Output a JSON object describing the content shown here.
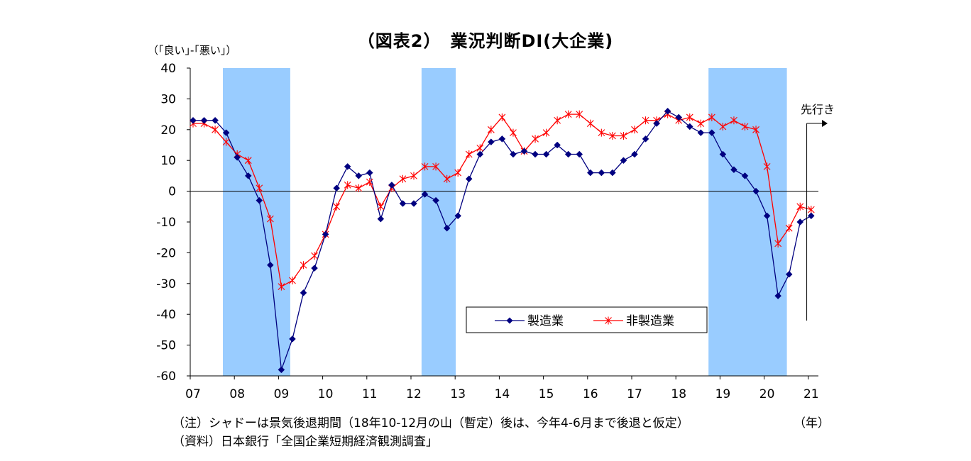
{
  "title": "（図表2）　業況判断DI(大企業)",
  "ylabel": "（｢良い｣-｢悪い｣）",
  "xunit": "（年）",
  "note1": "（注）シャドーは景気後退期間（18年10-12月の山（暫定）後は、今年4-6月まで後退と仮定）",
  "note2": "（資料）日本銀行「全国企業短期経済観測調査」",
  "annotation": "先行き",
  "colors": {
    "manufacturing": "#000080",
    "non_manufacturing": "#ff0000",
    "shade": "#99ccff"
  },
  "chart_data": {
    "type": "line",
    "title": "（図表2）　業況判断DI(大企業)",
    "ylabel": "（｢良い｣-｢悪い｣）",
    "xlabel": "（年）",
    "ylim": [
      -60,
      40
    ],
    "yticks": [
      40,
      30,
      20,
      10,
      0,
      -10,
      -20,
      -30,
      -40,
      -50,
      -60
    ],
    "xticks": [
      "07",
      "08",
      "09",
      "10",
      "11",
      "12",
      "13",
      "14",
      "15",
      "16",
      "17",
      "18",
      "19",
      "20",
      "21"
    ],
    "x_start": "2007Q1",
    "x_step": "quarter",
    "legend": [
      "製造業",
      "非製造業"
    ],
    "legend_position": "lower-right",
    "shaded_recessions": [
      [
        "2007Q4",
        "2009Q1"
      ],
      [
        "2012Q2",
        "2012Q4"
      ],
      [
        "2018Q4",
        "2020Q2"
      ]
    ],
    "series": [
      {
        "name": "製造業",
        "marker": "diamond",
        "values": [
          23,
          23,
          23,
          19,
          11,
          5,
          -3,
          -24,
          -58,
          -48,
          -33,
          -25,
          -14,
          1,
          8,
          5,
          6,
          -9,
          2,
          -4,
          -4,
          -1,
          -3,
          -12,
          -8,
          4,
          12,
          16,
          17,
          12,
          13,
          12,
          12,
          15,
          12,
          12,
          6,
          6,
          6,
          10,
          12,
          17,
          22,
          26,
          24,
          21,
          19,
          19,
          12,
          7,
          5,
          0,
          -8,
          -34,
          -27,
          -10,
          -8
        ]
      },
      {
        "name": "非製造業",
        "marker": "star",
        "values": [
          22,
          22,
          20,
          16,
          12,
          10,
          1,
          -9,
          -31,
          -29,
          -24,
          -21,
          -14,
          -5,
          2,
          1,
          3,
          -5,
          1,
          4,
          5,
          8,
          8,
          4,
          6,
          12,
          14,
          20,
          24,
          19,
          13,
          17,
          19,
          23,
          25,
          25,
          22,
          19,
          18,
          18,
          20,
          23,
          23,
          25,
          23,
          24,
          22,
          24,
          21,
          23,
          21,
          20,
          8,
          -17,
          -12,
          -5,
          -6
        ]
      }
    ]
  }
}
